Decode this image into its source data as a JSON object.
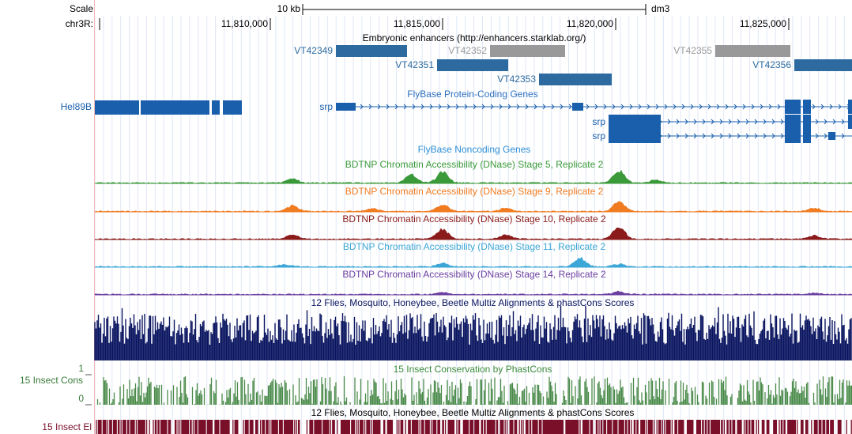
{
  "ruler": {
    "scale": "Scale",
    "chrom": "chr3R:",
    "bar": "10 kb",
    "assembly": "dm3",
    "ticks": [
      "11,810,000",
      "11,815,000",
      "11,820,000",
      "11,825,000"
    ]
  },
  "enhancers": {
    "title": "Embryonic enhancers (http://enhancers.starklab.org/)",
    "items": [
      "VT42349",
      "VT42352",
      "VT42355",
      "VT42351",
      "VT42356",
      "VT42353"
    ]
  },
  "genes": {
    "title": "FlyBase Protein-Coding Genes",
    "names": [
      "Hel89B",
      "srp",
      "srp",
      "srp"
    ],
    "noncoding": "FlyBase Noncoding Genes"
  },
  "tracks": [
    "BDTNP Chromatin Accessibility (DNase) Stage 5, Replicate 2",
    "BDTNP Chromatin Accessibility (DNase) Stage 9, Replicate 2",
    "BDTNP Chromatin Accessibility (DNase) Stage 10, Replicate 2",
    "BDTNP Chromatin Accessibility (DNase) Stage 11, Replicate 2",
    "BDTNP Chromatin Accessibility (DNase) Stage 14, Replicate 2"
  ],
  "conservation": {
    "multiz": "12 Flies, Mosquito, Honeybee, Beetle Multiz Alignments & phastCons Scores",
    "cons_label": "15 Insect Cons",
    "cons_max": "1",
    "cons_min": "0",
    "cons_title": "15 Insect Conservation by PhastCons",
    "el_title": "12 Flies, Mosquito, Honeybee, Beetle Multiz Alignments & phastCons Scores",
    "el_label": "15 Insect El"
  }
}
